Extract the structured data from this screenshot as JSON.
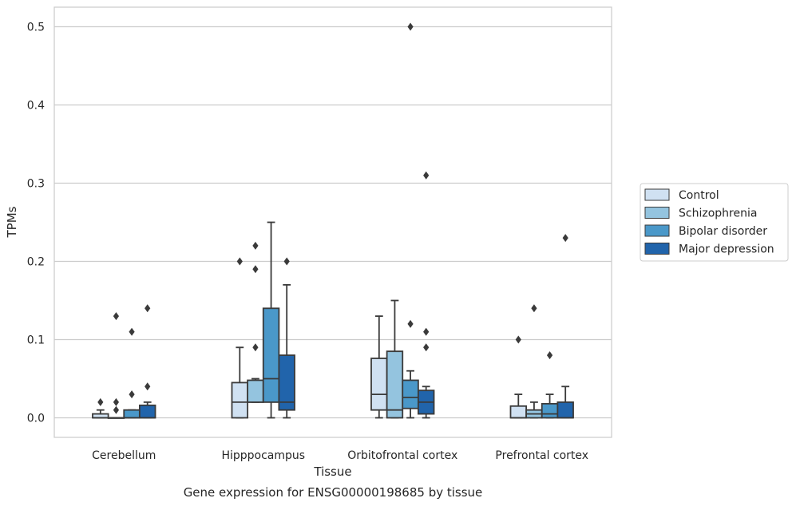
{
  "chart_data": {
    "type": "boxplot",
    "title": "",
    "caption": "Gene expression for ENSG00000198685 by tissue",
    "xlabel": "Tissue",
    "ylabel": "TPMs",
    "ylim": [
      -0.025,
      0.525
    ],
    "yticks": [
      0.0,
      0.1,
      0.2,
      0.3,
      0.4,
      0.5
    ],
    "ytick_labels": [
      "0.0",
      "0.1",
      "0.2",
      "0.3",
      "0.4",
      "0.5"
    ],
    "grid": "horizontal",
    "legend_position": "right",
    "categories": [
      "Cerebellum",
      "Hipppocampus",
      "Orbitofrontal cortex",
      "Prefrontal cortex"
    ],
    "series": [
      {
        "name": "Control",
        "color": "#d0e1f2",
        "boxes": [
          {
            "whislo": 0.0,
            "q1": 0.0,
            "med": 0.0,
            "q3": 0.005,
            "whishi": 0.01,
            "fliers": [
              0.02
            ]
          },
          {
            "whislo": 0.0,
            "q1": 0.0,
            "med": 0.02,
            "q3": 0.045,
            "whishi": 0.09,
            "fliers": [
              0.2
            ]
          },
          {
            "whislo": 0.0,
            "q1": 0.01,
            "med": 0.03,
            "q3": 0.076,
            "whishi": 0.13,
            "fliers": []
          },
          {
            "whislo": 0.0,
            "q1": 0.0,
            "med": 0.0,
            "q3": 0.015,
            "whishi": 0.03,
            "fliers": [
              0.1
            ]
          }
        ]
      },
      {
        "name": "Schizophrenia",
        "color": "#94c4df",
        "boxes": [
          {
            "whislo": 0.0,
            "q1": 0.0,
            "med": 0.0,
            "q3": 0.0,
            "whishi": 0.0,
            "fliers": [
              0.01,
              0.02,
              0.13
            ]
          },
          {
            "whislo": 0.02,
            "q1": 0.02,
            "med": 0.02,
            "q3": 0.048,
            "whishi": 0.05,
            "fliers": [
              0.09,
              0.19,
              0.22
            ]
          },
          {
            "whislo": 0.0,
            "q1": 0.0,
            "med": 0.01,
            "q3": 0.085,
            "whishi": 0.15,
            "fliers": []
          },
          {
            "whislo": 0.0,
            "q1": 0.0,
            "med": 0.005,
            "q3": 0.01,
            "whishi": 0.02,
            "fliers": [
              0.14
            ]
          }
        ]
      },
      {
        "name": "Bipolar disorder",
        "color": "#4a98c9",
        "boxes": [
          {
            "whislo": 0.0,
            "q1": 0.0,
            "med": 0.0,
            "q3": 0.01,
            "whishi": 0.01,
            "fliers": [
              0.03,
              0.11
            ]
          },
          {
            "whislo": 0.0,
            "q1": 0.02,
            "med": 0.05,
            "q3": 0.14,
            "whishi": 0.25,
            "fliers": []
          },
          {
            "whislo": 0.0,
            "q1": 0.012,
            "med": 0.026,
            "q3": 0.048,
            "whishi": 0.06,
            "fliers": [
              0.12,
              0.5
            ]
          },
          {
            "whislo": 0.0,
            "q1": 0.0,
            "med": 0.005,
            "q3": 0.018,
            "whishi": 0.03,
            "fliers": [
              0.08
            ]
          }
        ]
      },
      {
        "name": "Major depression",
        "color": "#2164ab",
        "boxes": [
          {
            "whislo": 0.0,
            "q1": 0.0,
            "med": 0.0,
            "q3": 0.016,
            "whishi": 0.02,
            "fliers": [
              0.04,
              0.14
            ]
          },
          {
            "whislo": 0.0,
            "q1": 0.01,
            "med": 0.02,
            "q3": 0.08,
            "whishi": 0.17,
            "fliers": [
              0.2
            ]
          },
          {
            "whislo": 0.0,
            "q1": 0.005,
            "med": 0.02,
            "q3": 0.035,
            "whishi": 0.04,
            "fliers": [
              0.09,
              0.11,
              0.31
            ]
          },
          {
            "whislo": 0.0,
            "q1": 0.0,
            "med": 0.0,
            "q3": 0.02,
            "whishi": 0.04,
            "fliers": [
              0.23
            ]
          }
        ]
      }
    ]
  }
}
